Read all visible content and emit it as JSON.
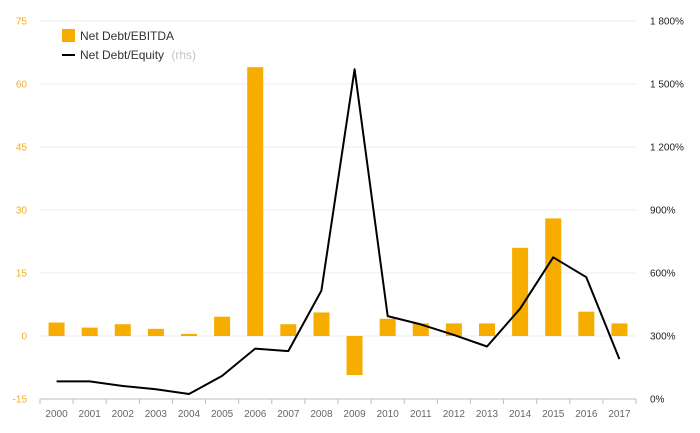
{
  "chart_data": {
    "type": "bar",
    "categories": [
      "2000",
      "2001",
      "2002",
      "2003",
      "2004",
      "2005",
      "2006",
      "2007",
      "2008",
      "2009",
      "2010",
      "2011",
      "2012",
      "2013",
      "2014",
      "2015",
      "2016",
      "2017"
    ],
    "series": [
      {
        "name": "Net Debt/EBITDA",
        "type": "bar",
        "axis": "left",
        "color": "#f7ac00",
        "values": [
          3.2,
          2.0,
          2.8,
          1.7,
          0.5,
          4.6,
          64.0,
          2.8,
          5.6,
          -9.3,
          4.1,
          3.0,
          3.0,
          3.0,
          21.0,
          28.0,
          5.8,
          3.0
        ]
      },
      {
        "name": "Net Debt/Equity",
        "name_note": "(rhs)",
        "type": "line",
        "axis": "right",
        "color": "#000000",
        "values": [
          84,
          84,
          62,
          46,
          24,
          110,
          240,
          228,
          516,
          1570,
          395,
          355,
          305,
          250,
          430,
          675,
          580,
          190
        ]
      }
    ],
    "y_left": {
      "ylim": [
        -15,
        75
      ],
      "ticks": [
        -15,
        0,
        15,
        30,
        45,
        60,
        75
      ],
      "tick_labels": [
        "-15",
        "0",
        "15",
        "30",
        "45",
        "60",
        "75"
      ],
      "color": "#f2b01e"
    },
    "y_right": {
      "ylim": [
        0,
        1800
      ],
      "ticks": [
        0,
        300,
        600,
        900,
        1200,
        1500,
        1800
      ],
      "tick_labels": [
        "0%",
        "300%",
        "600%",
        "900%",
        "1 200%",
        "1 500%",
        "1 800%"
      ],
      "color": "#222222"
    },
    "grid": "horizontal",
    "legend": "top-left"
  }
}
